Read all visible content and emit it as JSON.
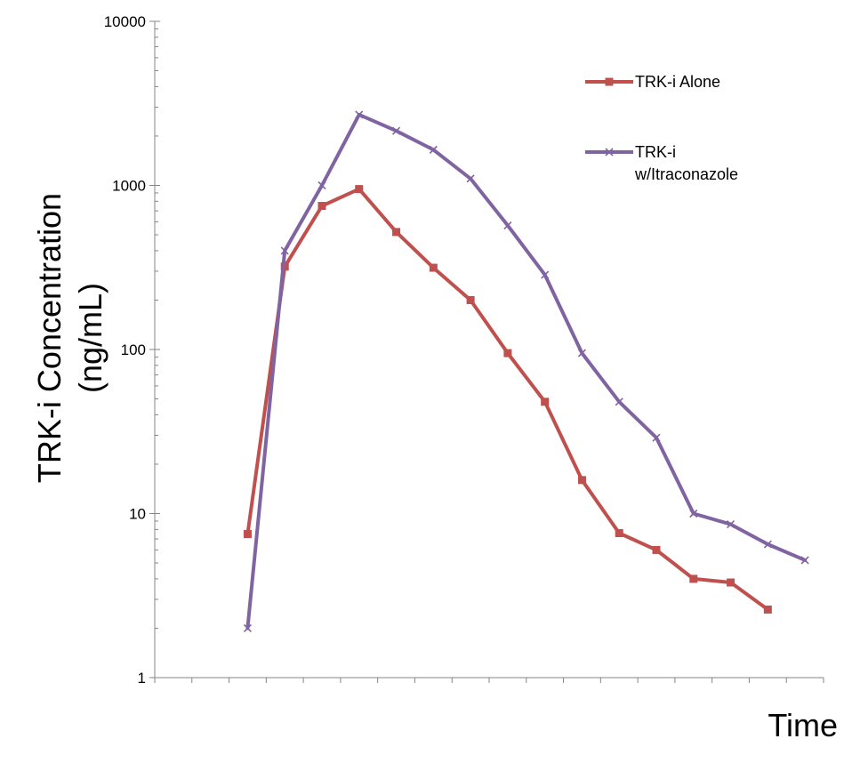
{
  "chart_data": {
    "type": "line",
    "title": "",
    "xlabel": "Time",
    "ylabel_lines": [
      "TRK-i Concentration",
      "(ng/mL)"
    ],
    "yscale": "log",
    "ylim": [
      1,
      10000
    ],
    "y_ticks": [
      1,
      10,
      100,
      1000,
      10000
    ],
    "y_tick_labels": [
      "1",
      "10",
      "100",
      "1000",
      "10000"
    ],
    "x_categories": 18,
    "legend_position": "top-right",
    "grid": false,
    "series": [
      {
        "name": "TRK-i Alone",
        "color": "#c0504d",
        "marker": "square",
        "x": [
          3,
          4,
          5,
          6,
          7,
          8,
          9,
          10,
          11,
          12,
          13,
          14,
          15,
          16,
          17
        ],
        "values": [
          7.5,
          320,
          750,
          950,
          520,
          315,
          200,
          95,
          48,
          16,
          7.6,
          6,
          4,
          3.8,
          2.6
        ]
      },
      {
        "name": "TRK-i w/Itraconazole",
        "name_lines": [
          "TRK-i",
          "w/Itraconazole"
        ],
        "color": "#8064a2",
        "marker": "x",
        "x": [
          3,
          4,
          5,
          6,
          7,
          8,
          9,
          10,
          11,
          12,
          13,
          14,
          15,
          16,
          17,
          18
        ],
        "values": [
          2,
          400,
          1000,
          2700,
          2150,
          1650,
          1100,
          570,
          285,
          95,
          48,
          29,
          10,
          8.6,
          6.5,
          5.2
        ]
      }
    ]
  }
}
